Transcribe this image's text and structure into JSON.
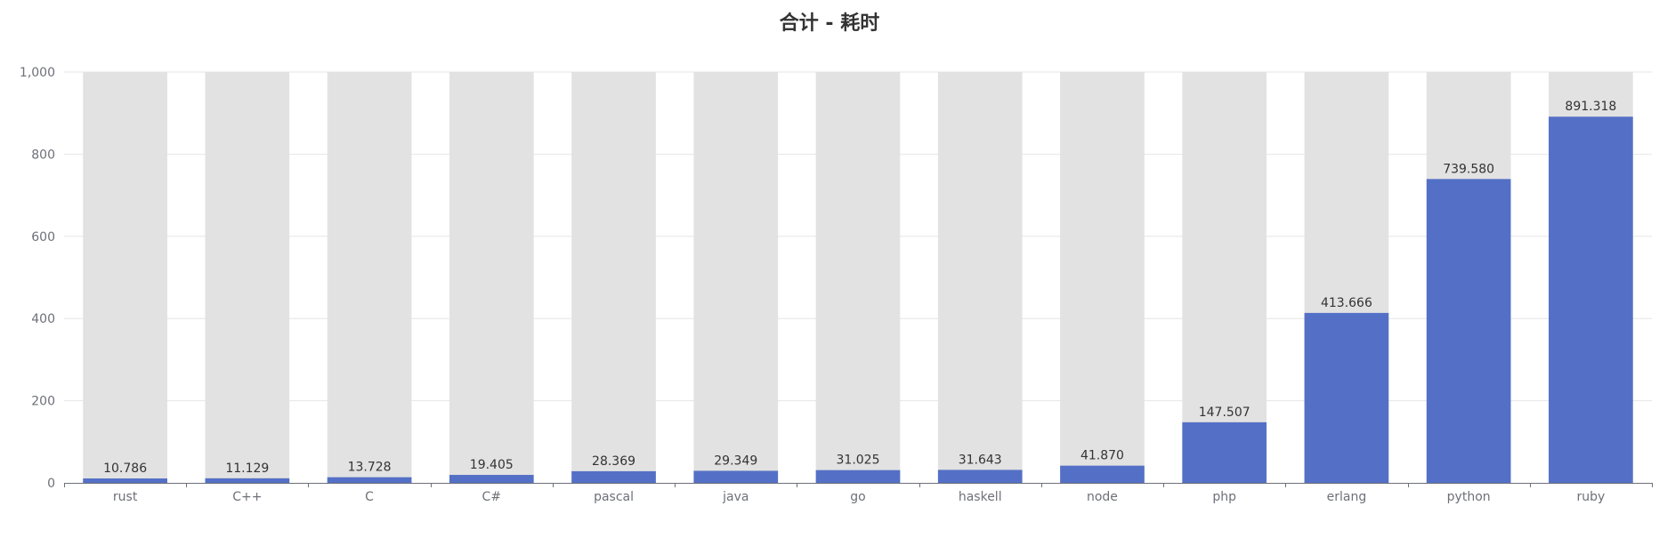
{
  "chart_data": {
    "type": "bar",
    "title": "合计 - 耗时",
    "categories": [
      "rust",
      "C++",
      "C",
      "C#",
      "pascal",
      "java",
      "go",
      "haskell",
      "node",
      "php",
      "erlang",
      "python",
      "ruby"
    ],
    "series": [
      {
        "values": [
          10.786,
          11.129,
          13.728,
          19.405,
          28.369,
          29.349,
          31.025,
          31.643,
          41.87,
          147.507,
          413.666,
          739.58,
          891.318
        ],
        "labels": [
          "10.786",
          "11.129",
          "13.728",
          "19.405",
          "28.369",
          "29.349",
          "31.025",
          "31.643",
          "41.870",
          "147.507",
          "413.666",
          "739.580",
          "891.318"
        ]
      }
    ],
    "ylim": [
      0,
      1000
    ],
    "yticks": [
      0,
      200,
      400,
      600,
      800,
      1000
    ],
    "ytick_labels": [
      "0",
      "200",
      "400",
      "600",
      "800",
      "1,000"
    ],
    "xlabel": "",
    "ylabel": "",
    "grid": true,
    "background_bars": true,
    "colors": {
      "bar": "#5470c6",
      "background_bar": "#e2e2e2",
      "grid": "#e6e6e6",
      "axis": "#6e7079",
      "label": "#333333",
      "tick_label": "#6e7079"
    }
  }
}
